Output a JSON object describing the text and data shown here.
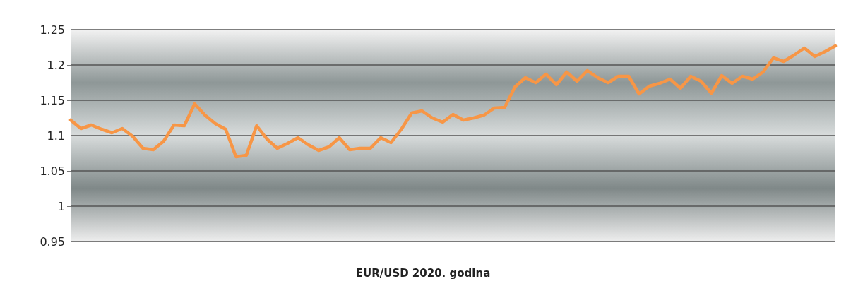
{
  "chart_data": {
    "type": "line",
    "title": "EUR/USD 2020. godina",
    "categories": [
      null,
      null,
      null,
      null,
      null,
      null,
      null,
      null,
      null,
      null,
      null,
      null,
      null,
      null,
      null,
      null,
      null,
      null,
      null,
      null,
      null,
      null,
      null,
      null,
      null,
      null,
      null,
      null,
      null,
      null,
      null,
      null,
      null,
      null,
      null,
      null,
      null,
      null,
      null,
      null,
      null,
      null,
      null,
      null,
      null,
      null,
      null,
      null,
      null,
      null,
      null,
      null,
      null,
      null,
      null,
      null,
      null,
      null,
      null,
      null,
      null,
      null,
      null,
      null,
      null,
      null,
      null,
      null,
      null,
      null,
      null,
      null,
      null,
      null,
      null
    ],
    "series": [
      {
        "color": "#f79646",
        "values": [
          1.122,
          1.11,
          1.115,
          1.109,
          1.104,
          1.11,
          1.099,
          1.082,
          1.08,
          1.092,
          1.115,
          1.114,
          1.145,
          1.129,
          1.117,
          1.109,
          1.07,
          1.072,
          1.114,
          1.095,
          1.082,
          1.089,
          1.097,
          1.087,
          1.079,
          1.084,
          1.097,
          1.08,
          1.082,
          1.082,
          1.097,
          1.09,
          1.109,
          1.132,
          1.135,
          1.125,
          1.119,
          1.13,
          1.122,
          1.125,
          1.129,
          1.139,
          1.14,
          1.169,
          1.182,
          1.175,
          1.187,
          1.172,
          1.19,
          1.177,
          1.192,
          1.182,
          1.175,
          1.184,
          1.184,
          1.159,
          1.17,
          1.174,
          1.18,
          1.167,
          1.184,
          1.177,
          1.16,
          1.185,
          1.174,
          1.184,
          1.18,
          1.19,
          1.21,
          1.205,
          1.214,
          1.224,
          1.212,
          1.219,
          1.227
        ]
      }
    ],
    "ylim": [
      0.95,
      1.25
    ],
    "yticks": [
      0.95,
      1,
      1.05,
      1.1,
      1.15,
      1.2,
      1.25
    ],
    "grid": "y",
    "marker": "none",
    "line_style": "solid"
  }
}
